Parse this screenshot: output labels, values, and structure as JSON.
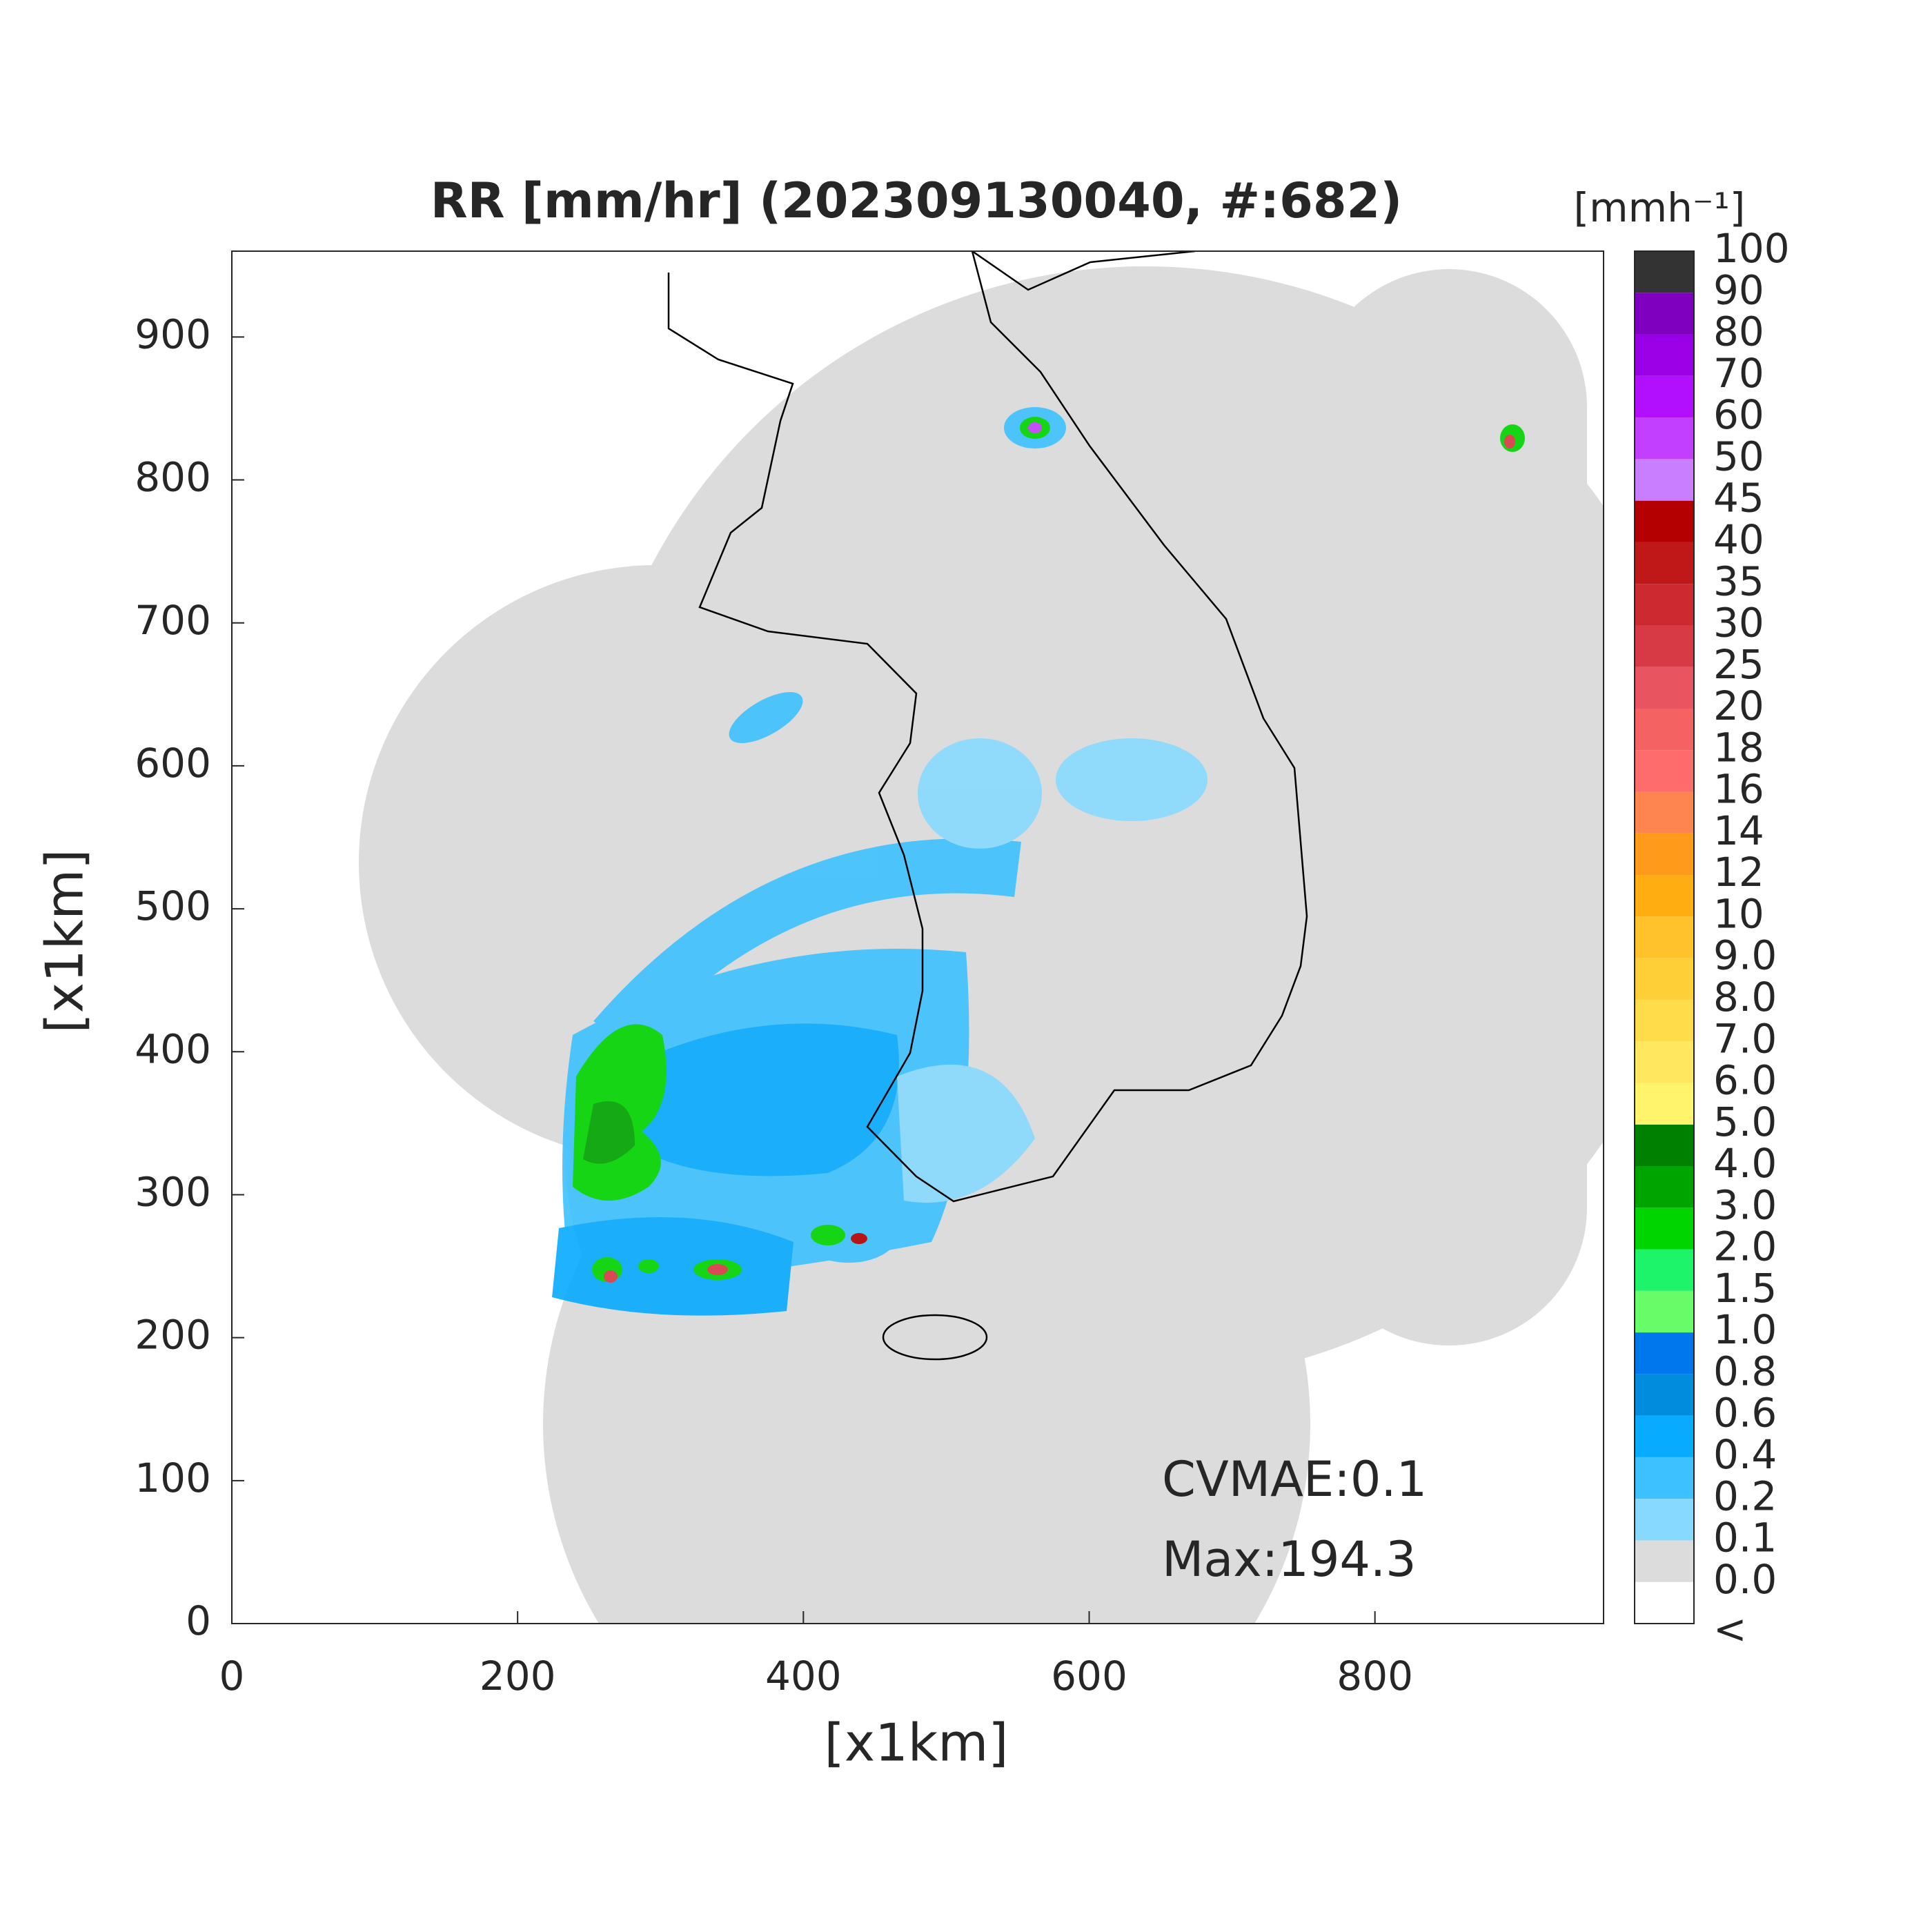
{
  "figure": {
    "title": "RR [mm/hr] (202309130040, #:682)",
    "xlabel": "[x1km]",
    "ylabel": "[x1km]",
    "xlim": [
      0,
      960
    ],
    "ylim": [
      0,
      960
    ],
    "xticks": [
      0,
      200,
      400,
      600,
      800
    ],
    "yticks": [
      0,
      100,
      200,
      300,
      400,
      500,
      600,
      700,
      800,
      900
    ],
    "annotations": [
      "CVMAE:0.1",
      "Max:194.3"
    ],
    "colorbar": {
      "unit": "[mmh⁻¹]",
      "labels": [
        "<",
        "0.0",
        "0.1",
        "0.2",
        "0.4",
        "0.6",
        "0.8",
        "1.0",
        "1.5",
        "2.0",
        "3.0",
        "4.0",
        "5.0",
        "6.0",
        "7.0",
        "8.0",
        "9.0",
        "10",
        "12",
        "14",
        "16",
        "18",
        "20",
        "25",
        "30",
        "35",
        "40",
        "45",
        "50",
        "60",
        "70",
        "80",
        "90",
        "100"
      ],
      "colors": [
        "#ffffff",
        "#dcdcdc",
        "#87d9ff",
        "#3ec1ff",
        "#07abff",
        "#008dde",
        "#0077ed",
        "#69fc69",
        "#1ef46a",
        "#00d500",
        "#00a400",
        "#008000",
        "#fff46b",
        "#ffe860",
        "#ffdc4a",
        "#ffcf38",
        "#ffc22a",
        "#ffad10",
        "#ff9a1a",
        "#ff8550",
        "#ff6c6c",
        "#f56262",
        "#e85560",
        "#d83a45",
        "#cc2a30",
        "#c01818",
        "#b40000",
        "#c97dff",
        "#c33fff",
        "#b30fff",
        "#9a00e8",
        "#7f00bf",
        "#333333"
      ]
    }
  }
}
